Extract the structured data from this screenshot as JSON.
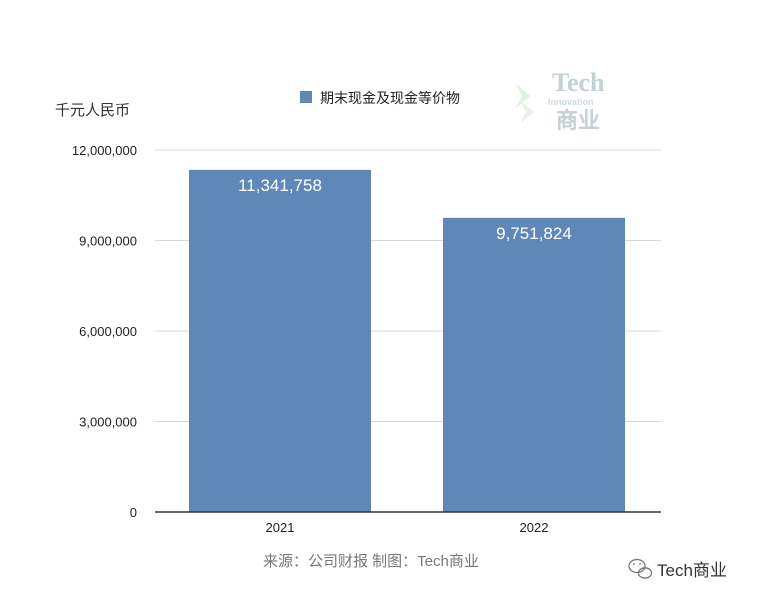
{
  "chart_data": {
    "type": "bar",
    "categories": [
      "2021",
      "2022"
    ],
    "series": [
      {
        "name": "期末现金及现金等价物",
        "values": [
          11341758,
          9751824
        ],
        "color": "#5f87b7"
      }
    ],
    "data_labels": [
      "11,341,758",
      "9,751,824"
    ],
    "ylabel": "千元人民币",
    "ylim": [
      0,
      12000000
    ],
    "yticks": [
      0,
      3000000,
      6000000,
      9000000,
      12000000
    ],
    "ytick_labels": [
      "0",
      "3,000,000",
      "6,000,000",
      "9,000,000",
      "12,000,000"
    ],
    "grid": true,
    "legend_position": "top"
  },
  "source_note": "来源：公司财报 制图：Tech商业",
  "watermark": {
    "line1": "Tech",
    "line2": "Innovation",
    "line3": "商业"
  },
  "footer_brand": "Tech商业",
  "colors": {
    "bar": "#5f87b7",
    "grid": "#d9d9d9",
    "axis": "#333333"
  },
  "icons": [
    "wechat-icon"
  ]
}
